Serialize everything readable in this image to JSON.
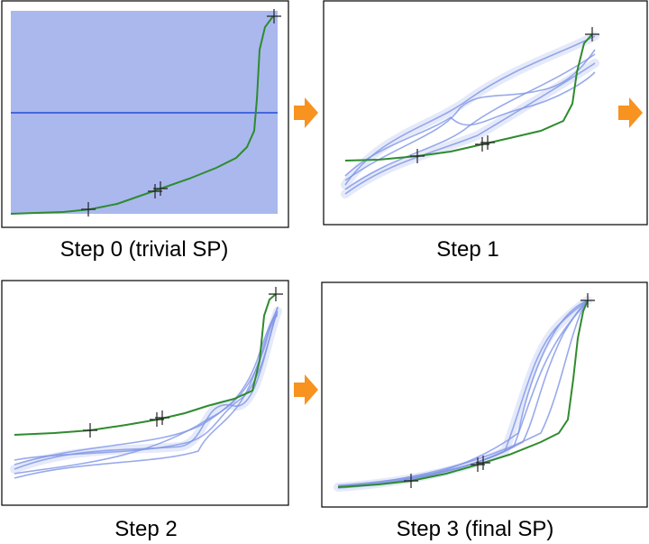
{
  "panels": [
    {
      "caption": "Step 0 (trivial SP)"
    },
    {
      "caption": "Step 1"
    },
    {
      "caption": "Step 2"
    },
    {
      "caption": "Step 3 (final SP)"
    }
  ]
}
